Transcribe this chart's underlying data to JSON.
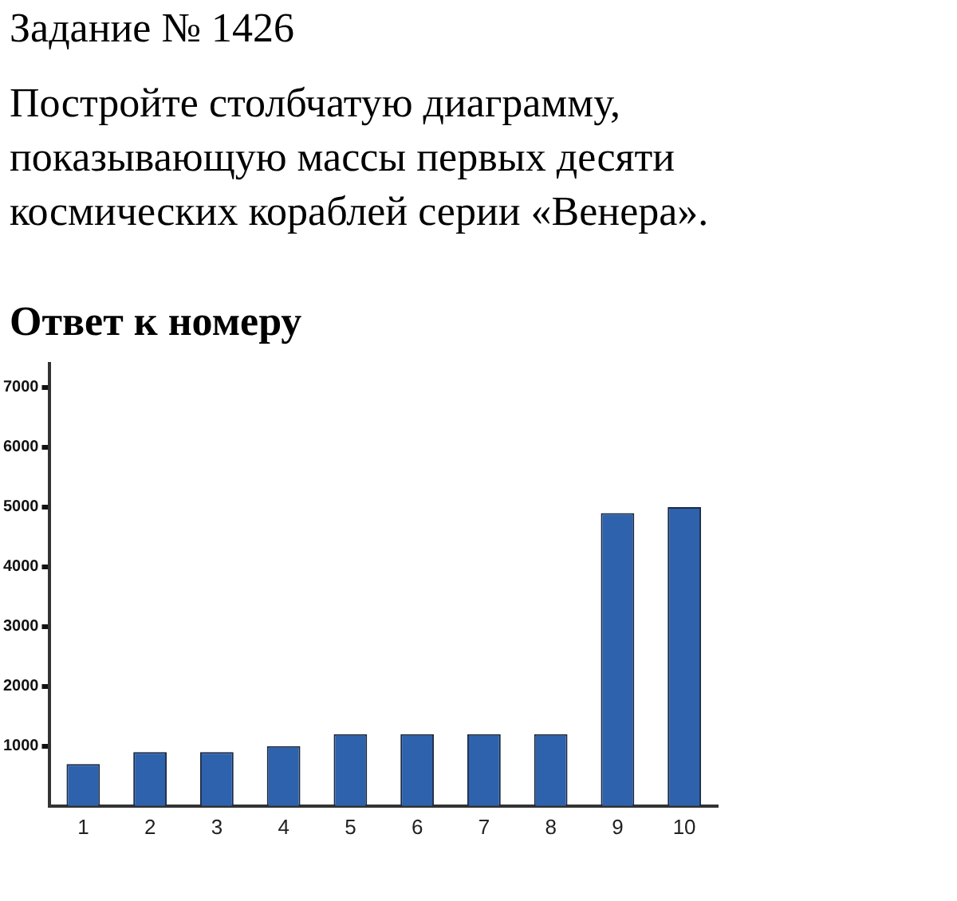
{
  "chart_data": {
    "type": "bar",
    "title": "Задание № 1426",
    "subtitle": "Постройте столбчатую диаграмму,\nпоказывающую массы первых десяти\nкосмических кораблей серии «Венера».",
    "annotations": [
      "Ответ к номеру"
    ],
    "categories": [
      "1",
      "2",
      "3",
      "4",
      "5",
      "6",
      "7",
      "8",
      "9",
      "10"
    ],
    "values": [
      700,
      900,
      900,
      1000,
      1200,
      1200,
      1200,
      1200,
      4900,
      5000
    ],
    "color": "#2e62ad",
    "ylim": [
      0,
      7400
    ],
    "yticks": [
      1000,
      2000,
      3000,
      4000,
      5000,
      6000,
      7000
    ],
    "grid": false,
    "legend": false
  }
}
